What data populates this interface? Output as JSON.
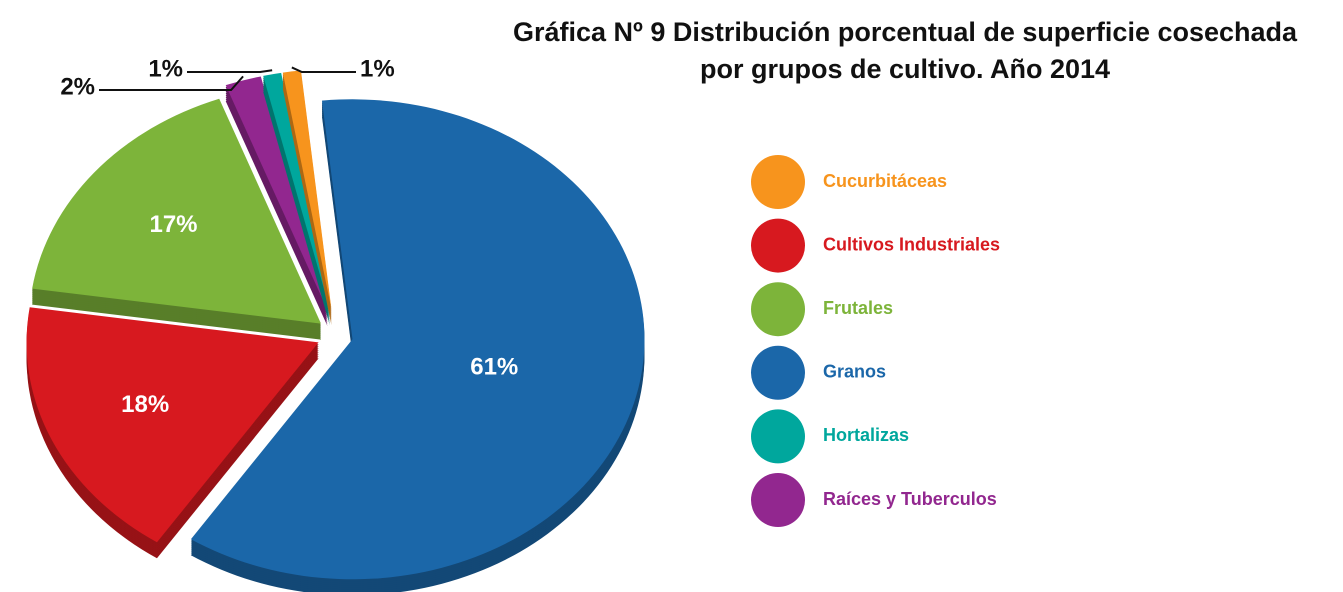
{
  "chart_data": {
    "type": "pie",
    "title": "Gráfica Nº 9 Distribución porcentual de superficie cosechada por grupos de cultivo. Año 2014",
    "categories": [
      "Cucurbitáceas",
      "Cultivos Industriales",
      "Frutales",
      "Granos",
      "Hortalizas",
      "Raíces y Tuberculos"
    ],
    "values": [
      1,
      18,
      17,
      61,
      1,
      2
    ],
    "value_labels": [
      "1%",
      "18%",
      "17%",
      "61%",
      "1%",
      "2%"
    ],
    "colors": [
      "#f7941d",
      "#d7191f",
      "#7db43a",
      "#1b67a9",
      "#00a79d",
      "#92278f"
    ],
    "legend": "right"
  }
}
